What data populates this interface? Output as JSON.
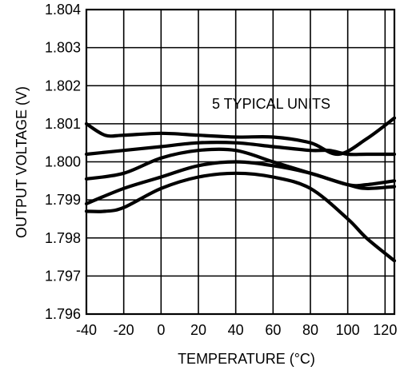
{
  "chart_data": {
    "type": "line",
    "title": "",
    "annotation": "5 TYPICAL UNITS",
    "xlabel": "TEMPERATURE (°C)",
    "ylabel": "OUTPUT VOLTAGE (V)",
    "xlim": [
      -40,
      125
    ],
    "ylim": [
      1.796,
      1.804
    ],
    "x_ticks": [
      -40,
      -20,
      0,
      20,
      40,
      60,
      80,
      100,
      120
    ],
    "x_tick_labels": [
      "-40",
      "-20",
      "0",
      "20",
      "40",
      "60",
      "80",
      "100",
      "120"
    ],
    "y_ticks": [
      1.796,
      1.797,
      1.798,
      1.799,
      1.8,
      1.801,
      1.802,
      1.803,
      1.804
    ],
    "y_tick_labels": [
      "1.796",
      "1.797",
      "1.798",
      "1.799",
      "1.800",
      "1.801",
      "1.802",
      "1.803",
      "1.804"
    ],
    "grid": true,
    "line_color": "#000000",
    "series": [
      {
        "x": [
          -40,
          -30,
          -20,
          0,
          20,
          40,
          60,
          80,
          95,
          110,
          125
        ],
        "values": [
          1.801,
          1.8007,
          1.8007,
          1.80075,
          1.8007,
          1.80065,
          1.80065,
          1.8005,
          1.8002,
          1.8006,
          1.80115
        ]
      },
      {
        "x": [
          -40,
          -20,
          0,
          20,
          40,
          60,
          80,
          90,
          100,
          110,
          125
        ],
        "values": [
          1.8002,
          1.8003,
          1.8004,
          1.8005,
          1.8005,
          1.8004,
          1.8003,
          1.8003,
          1.8002,
          1.8002,
          1.8002
        ]
      },
      {
        "x": [
          -40,
          -20,
          0,
          20,
          40,
          60,
          80,
          100,
          110,
          125
        ],
        "values": [
          1.79955,
          1.7997,
          1.8001,
          1.8003,
          1.8003,
          1.8,
          1.7997,
          1.7994,
          1.7993,
          1.79935
        ]
      },
      {
        "x": [
          -40,
          -20,
          0,
          20,
          40,
          60,
          80,
          100,
          110,
          125
        ],
        "values": [
          1.7989,
          1.7993,
          1.7996,
          1.7999,
          1.8,
          1.7999,
          1.7997,
          1.7994,
          1.7994,
          1.7995
        ]
      },
      {
        "x": [
          -40,
          -30,
          -20,
          0,
          20,
          40,
          60,
          80,
          100,
          110,
          125
        ],
        "values": [
          1.7987,
          1.7987,
          1.7988,
          1.7993,
          1.7996,
          1.7997,
          1.7996,
          1.7993,
          1.7985,
          1.798,
          1.7974
        ]
      }
    ]
  }
}
